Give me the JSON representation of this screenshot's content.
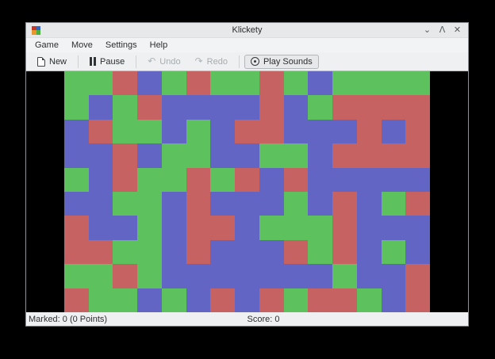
{
  "window": {
    "title": "Klickety",
    "controls": {
      "minimize_glyph": "⌄",
      "maximize_glyph": "ᐱ",
      "close_glyph": "✕"
    },
    "app_icon_colors": [
      "#c0392b",
      "#3465c4",
      "#e8972a",
      "#4caf3f"
    ]
  },
  "menubar": {
    "items": [
      {
        "label": "Game"
      },
      {
        "label": "Move"
      },
      {
        "label": "Settings"
      },
      {
        "label": "Help"
      }
    ]
  },
  "toolbar": {
    "new_label": "New",
    "pause_label": "Pause",
    "undo_label": "Undo",
    "redo_label": "Redo",
    "play_sounds_label": "Play Sounds"
  },
  "board": {
    "columns": 15,
    "rows_count": 10,
    "colors": {
      "G": "#5dc25d",
      "R": "#c66262",
      "B": "#6365c5"
    },
    "rows": [
      "GGRBGRGGRGBGGGG",
      "GBGRBBBBRBGRRRR",
      "BRGGBGBRRBBBRBR",
      "BBRBGGBBGGBRRRR",
      "GBRGGRGRBRBBBBB",
      "BBGGBRBBBGBRBGR",
      "RBBGBRRBGGGRBBB",
      "RRGGBRBBBRGRBGB",
      "GGRGBBBBBBBGBBR",
      "RGGBGBRBRGRRGBR"
    ]
  },
  "statusbar": {
    "marked": "Marked: 0 (0 Points)",
    "score": "Score: 0"
  }
}
